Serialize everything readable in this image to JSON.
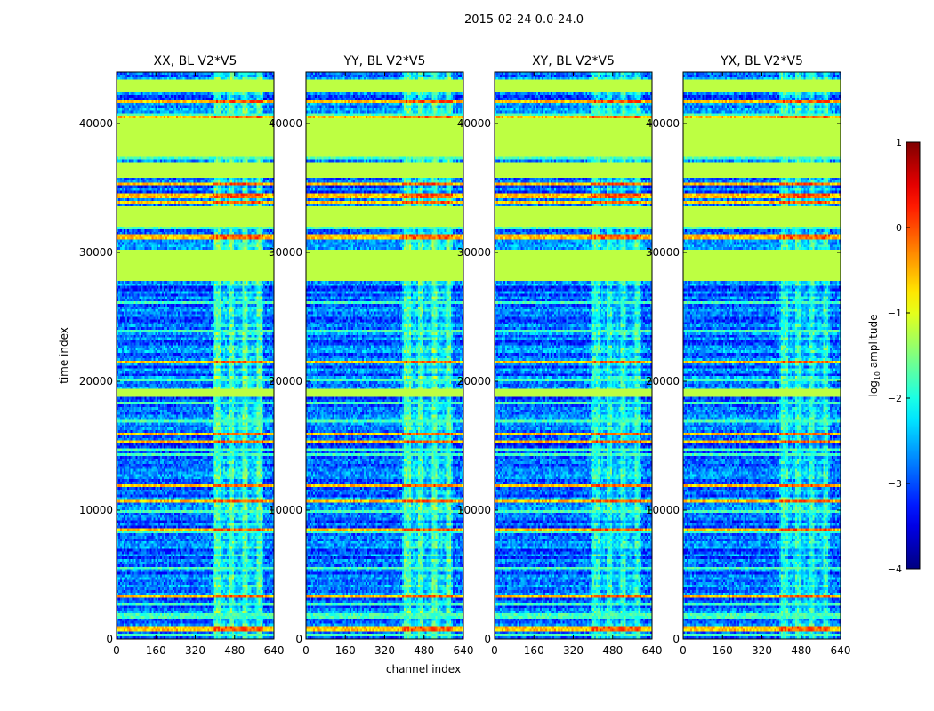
{
  "figure_title": "2015-02-24 0.0-24.0",
  "chart_data": {
    "type": "heatmap",
    "title": "2015-02-24 0.0-24.0",
    "xlabel": "channel index",
    "ylabel": "time index",
    "xlim": [
      0,
      640
    ],
    "ylim": [
      0,
      44000
    ],
    "x_ticks": [
      "0",
      "160",
      "320",
      "480",
      "640"
    ],
    "x_tick_values": [
      0,
      160,
      320,
      480,
      640
    ],
    "y_ticks": [
      "0",
      "10000",
      "20000",
      "30000",
      "40000"
    ],
    "y_tick_values": [
      0,
      10000,
      20000,
      30000,
      40000
    ],
    "panels": [
      {
        "title": "XX, BL V2*V5",
        "pol": "XX"
      },
      {
        "title": "YY, BL V2*V5",
        "pol": "YY"
      },
      {
        "title": "XY, BL V2*V5",
        "pol": "XY"
      },
      {
        "title": "YX, BL V2*V5",
        "pol": "YX"
      }
    ],
    "colorbar": {
      "label": "log10 amplitude",
      "label_main": "log",
      "label_sub": "10",
      "label_rest": " amplitude",
      "min": -4,
      "max": 1,
      "ticks": [
        "1",
        "0",
        "−1",
        "−2",
        "−3",
        "−4"
      ],
      "tick_values": [
        1,
        0,
        -1,
        -2,
        -3,
        -4
      ],
      "colormap": "jet"
    },
    "flagged_time_ranges": [
      [
        42400,
        43300
      ],
      [
        37400,
        40300
      ],
      [
        35900,
        37000
      ],
      [
        32000,
        33500
      ],
      [
        29500,
        30100
      ],
      [
        27800,
        29500
      ],
      [
        18900,
        19400
      ]
    ],
    "flag_value": -1.2,
    "rfi_channel_range": [
      390,
      600
    ]
  }
}
